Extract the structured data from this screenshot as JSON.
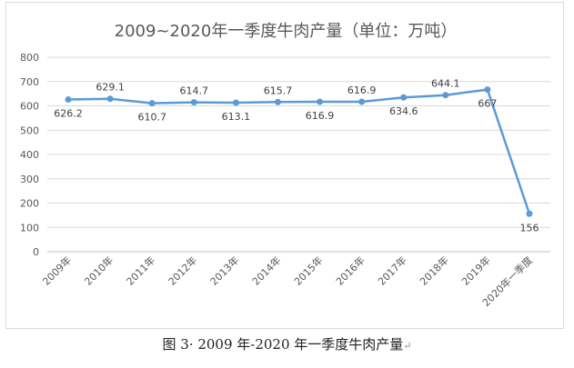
{
  "chart_data": {
    "type": "line",
    "title": "2009~2020年一季度牛肉产量（单位：万吨）",
    "categories": [
      "2009年",
      "2010年",
      "2011年",
      "2012年",
      "2013年",
      "2014年",
      "2015年",
      "2016年",
      "2017年",
      "2018年",
      "2019年",
      "2020年一季度"
    ],
    "values": [
      626.2,
      629.1,
      610.7,
      614.7,
      613.1,
      615.7,
      616.9,
      616.9,
      634.6,
      644.1,
      667,
      156
    ],
    "data_labels": [
      "626.2",
      "629.1",
      "610.7",
      "614.7",
      "613.1",
      "615.7",
      "616.9",
      "616.9",
      "634.6",
      "644.1",
      "667",
      "156"
    ],
    "ylim": [
      0,
      800
    ],
    "yticks": [
      0,
      100,
      200,
      300,
      400,
      500,
      600,
      700,
      800
    ],
    "grid": true,
    "line_color": "#5B9BD5",
    "xlabel": "",
    "ylabel": ""
  },
  "caption": {
    "text": "图 3· 2009 年-2020 年一季度牛肉产量",
    "mark": "↵"
  }
}
